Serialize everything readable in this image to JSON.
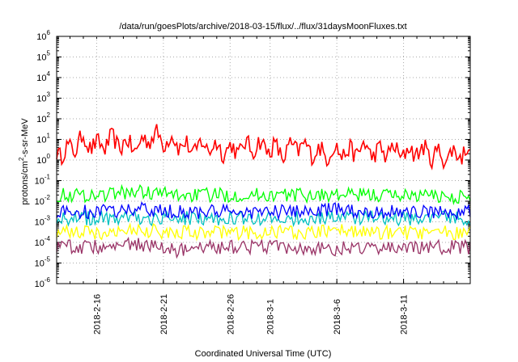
{
  "chart_data": {
    "type": "line",
    "title": "/data/run/goesPlots/archive/2018-03-15/flux/../flux/31daysMoonFluxes.txt",
    "xlabel": "Coordinated Universal Time (UTC)",
    "ylabel": {
      "pre": "protons/cm",
      "sup": "2",
      "post": "-s-sr-MeV"
    },
    "yscale": "log",
    "ylim": [
      1e-06,
      1000000.0
    ],
    "xlim": [
      "2018-02-13T00:00Z",
      "2018-03-16T00:00Z"
    ],
    "grid": true,
    "legend": "none",
    "y_ticks": [
      {
        "value": 1e-06,
        "base": "10",
        "exp": "-6"
      },
      {
        "value": 1e-05,
        "base": "10",
        "exp": "-5"
      },
      {
        "value": 0.0001,
        "base": "10",
        "exp": "-4"
      },
      {
        "value": 0.001,
        "base": "10",
        "exp": "-3"
      },
      {
        "value": 0.01,
        "base": "10",
        "exp": "-2"
      },
      {
        "value": 0.1,
        "base": "10",
        "exp": "-1"
      },
      {
        "value": 1,
        "base": "10",
        "exp": "0"
      },
      {
        "value": 10.0,
        "base": "10",
        "exp": "1"
      },
      {
        "value": 100.0,
        "base": "10",
        "exp": "2"
      },
      {
        "value": 1000.0,
        "base": "10",
        "exp": "3"
      },
      {
        "value": 10000.0,
        "base": "10",
        "exp": "4"
      },
      {
        "value": 100000.0,
        "base": "10",
        "exp": "5"
      },
      {
        "value": 1000000.0,
        "base": "10",
        "exp": "6"
      }
    ],
    "x_ticks": [
      "2018-2-16",
      "2018-2-21",
      "2018-2-26",
      "2018-3-1",
      "2018-3-6",
      "2018-3-11"
    ],
    "x_ticks_dates": [
      "2018-02-16",
      "2018-02-21",
      "2018-02-26",
      "2018-03-01",
      "2018-03-06",
      "2018-03-11"
    ],
    "x_minor_step_days": 1,
    "series": [
      {
        "color": "#ff0000",
        "points": [
          [
            "2018-02-13",
            2.5
          ],
          [
            "2018-02-14",
            3
          ],
          [
            "2018-02-15",
            10
          ],
          [
            "2018-02-16",
            4
          ],
          [
            "2018-02-17",
            8
          ],
          [
            "2018-02-18",
            6
          ],
          [
            "2018-02-19",
            4
          ],
          [
            "2018-02-20",
            15
          ],
          [
            "2018-02-21",
            10
          ],
          [
            "2018-02-22",
            8
          ],
          [
            "2018-02-23",
            3
          ],
          [
            "2018-02-24",
            5
          ],
          [
            "2018-02-25",
            4
          ],
          [
            "2018-02-26",
            3
          ],
          [
            "2018-02-27",
            4
          ],
          [
            "2018-02-28",
            5
          ],
          [
            "2018-03-01",
            4
          ],
          [
            "2018-03-02",
            2
          ],
          [
            "2018-03-03",
            5
          ],
          [
            "2018-03-04",
            3
          ],
          [
            "2018-03-05",
            2
          ],
          [
            "2018-03-06",
            3
          ],
          [
            "2018-03-07",
            2
          ],
          [
            "2018-03-08",
            4
          ],
          [
            "2018-03-09",
            2
          ],
          [
            "2018-03-10",
            3
          ],
          [
            "2018-03-11",
            2
          ],
          [
            "2018-03-12",
            3
          ],
          [
            "2018-03-13",
            2
          ],
          [
            "2018-03-14",
            1.5
          ],
          [
            "2018-03-15",
            2
          ],
          [
            "2018-03-16",
            3
          ]
        ]
      },
      {
        "color": "#00ff00",
        "points": [
          [
            "2018-02-13",
            0.02
          ],
          [
            "2018-02-16",
            0.02
          ],
          [
            "2018-02-19",
            0.03
          ],
          [
            "2018-02-22",
            0.02
          ],
          [
            "2018-02-25",
            0.02
          ],
          [
            "2018-02-28",
            0.02
          ],
          [
            "2018-03-03",
            0.02
          ],
          [
            "2018-03-06",
            0.02
          ],
          [
            "2018-03-09",
            0.02
          ],
          [
            "2018-03-12",
            0.02
          ],
          [
            "2018-03-16",
            0.015
          ]
        ]
      },
      {
        "color": "#0000ff",
        "points": [
          [
            "2018-02-13",
            0.003
          ],
          [
            "2018-02-16",
            0.003
          ],
          [
            "2018-02-19",
            0.004
          ],
          [
            "2018-02-22",
            0.003
          ],
          [
            "2018-02-25",
            0.003
          ],
          [
            "2018-02-28",
            0.003
          ],
          [
            "2018-03-03",
            0.003
          ],
          [
            "2018-03-06",
            0.004
          ],
          [
            "2018-03-09",
            0.003
          ],
          [
            "2018-03-12",
            0.003
          ],
          [
            "2018-03-16",
            0.003
          ]
        ]
      },
      {
        "color": "#00c0c0",
        "points": [
          [
            "2018-02-13",
            0.0015
          ],
          [
            "2018-02-16",
            0.0015
          ],
          [
            "2018-02-19",
            0.0015
          ],
          [
            "2018-02-22",
            0.0015
          ],
          [
            "2018-02-25",
            0.0015
          ],
          [
            "2018-02-28",
            0.0015
          ],
          [
            "2018-03-03",
            0.0015
          ],
          [
            "2018-03-06",
            0.0015
          ],
          [
            "2018-03-09",
            0.0015
          ],
          [
            "2018-03-12",
            0.0015
          ],
          [
            "2018-03-16",
            0.0015
          ]
        ]
      },
      {
        "color": "#ffff00",
        "points": [
          [
            "2018-02-13",
            0.0003
          ],
          [
            "2018-02-16",
            0.0003
          ],
          [
            "2018-02-19",
            0.0004
          ],
          [
            "2018-02-22",
            0.0003
          ],
          [
            "2018-02-25",
            0.0003
          ],
          [
            "2018-02-28",
            0.0003
          ],
          [
            "2018-03-03",
            0.0003
          ],
          [
            "2018-03-06",
            0.0004
          ],
          [
            "2018-03-09",
            0.0003
          ],
          [
            "2018-03-12",
            0.0003
          ],
          [
            "2018-03-16",
            0.0003
          ]
        ]
      },
      {
        "color": "#993366",
        "points": [
          [
            "2018-02-13",
            6e-05
          ],
          [
            "2018-02-16",
            6e-05
          ],
          [
            "2018-02-19",
            8e-05
          ],
          [
            "2018-02-22",
            4e-05
          ],
          [
            "2018-02-25",
            6e-05
          ],
          [
            "2018-02-28",
            6e-05
          ],
          [
            "2018-03-03",
            6e-05
          ],
          [
            "2018-03-06",
            5e-05
          ],
          [
            "2018-03-09",
            6e-05
          ],
          [
            "2018-03-12",
            6e-05
          ],
          [
            "2018-03-16",
            6e-05
          ]
        ]
      }
    ]
  }
}
